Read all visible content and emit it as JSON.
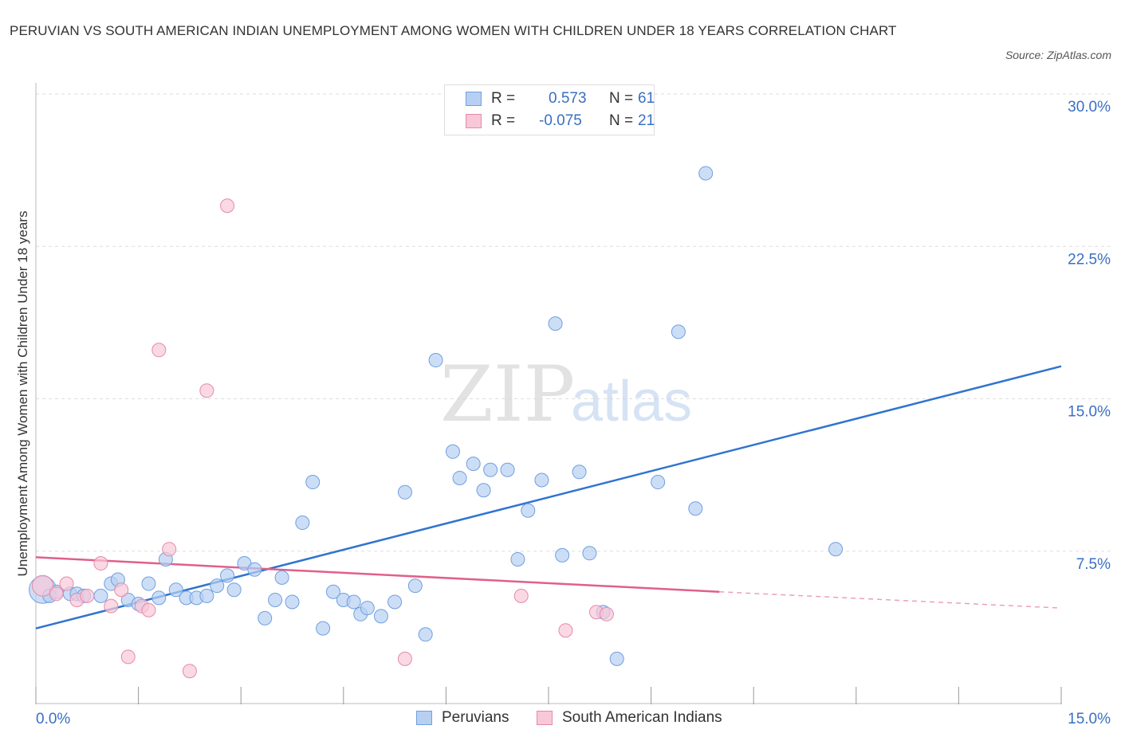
{
  "title": "PERUVIAN VS SOUTH AMERICAN INDIAN UNEMPLOYMENT AMONG WOMEN WITH CHILDREN UNDER 18 YEARS CORRELATION CHART",
  "source": "Source: ZipAtlas.com",
  "watermark": {
    "zip": "ZIP",
    "atlas": "atlas"
  },
  "colors": {
    "blue_fill": "#b7d0f2",
    "blue_stroke": "#6f9fe0",
    "blue_line": "#2f74d0",
    "pink_fill": "#f8c8d8",
    "pink_stroke": "#e68aa8",
    "pink_line": "#e0608a",
    "tick_label": "#3a6fc4",
    "grid": "#dddddd"
  },
  "legend": {
    "rows": [
      {
        "r_label": "R =",
        "r_value": "0.573",
        "n_label": "N =",
        "n_value": "61"
      },
      {
        "r_label": "R =",
        "r_value": "-0.075",
        "n_label": "N =",
        "n_value": "21"
      }
    ]
  },
  "bottom_legend": {
    "peruvians": "Peruvians",
    "south_american_indians": "South American Indians"
  },
  "chart_data": {
    "type": "scatter",
    "title": "PERUVIAN VS SOUTH AMERICAN INDIAN UNEMPLOYMENT AMONG WOMEN WITH CHILDREN UNDER 18 YEARS CORRELATION CHART",
    "xlabel": "",
    "ylabel": "Unemployment Among Women with Children Under 18 years",
    "xlim": [
      0,
      15
    ],
    "ylim": [
      0,
      30
    ],
    "x_ticks": [
      "0.0%",
      "15.0%"
    ],
    "y_ticks": [
      {
        "value": 7.5,
        "label": "7.5%"
      },
      {
        "value": 15,
        "label": "15.0%"
      },
      {
        "value": 22.5,
        "label": "22.5%"
      },
      {
        "value": 30,
        "label": "30.0%"
      }
    ],
    "grid": true,
    "series": [
      {
        "name": "Peruvians",
        "r": 0.573,
        "n": 61,
        "trend": {
          "x": [
            0,
            15
          ],
          "y": [
            3.7,
            16.6
          ]
        },
        "points": [
          [
            0.1,
            5.6
          ],
          [
            0.2,
            5.3
          ],
          [
            0.3,
            5.5
          ],
          [
            0.5,
            5.4
          ],
          [
            0.6,
            5.4
          ],
          [
            0.7,
            5.3
          ],
          [
            0.95,
            5.3
          ],
          [
            1.1,
            5.9
          ],
          [
            1.2,
            6.1
          ],
          [
            1.35,
            5.1
          ],
          [
            1.5,
            4.9
          ],
          [
            1.65,
            5.9
          ],
          [
            1.8,
            5.2
          ],
          [
            1.9,
            7.1
          ],
          [
            2.05,
            5.6
          ],
          [
            2.2,
            5.2
          ],
          [
            2.35,
            5.2
          ],
          [
            2.5,
            5.3
          ],
          [
            2.65,
            5.8
          ],
          [
            2.8,
            6.3
          ],
          [
            2.9,
            5.6
          ],
          [
            3.05,
            6.9
          ],
          [
            3.2,
            6.6
          ],
          [
            3.35,
            4.2
          ],
          [
            3.5,
            5.1
          ],
          [
            3.6,
            6.2
          ],
          [
            3.75,
            5.0
          ],
          [
            3.9,
            8.9
          ],
          [
            4.05,
            10.9
          ],
          [
            4.2,
            3.7
          ],
          [
            4.35,
            5.5
          ],
          [
            4.5,
            5.1
          ],
          [
            4.65,
            5.0
          ],
          [
            4.75,
            4.4
          ],
          [
            4.85,
            4.7
          ],
          [
            5.05,
            4.3
          ],
          [
            5.25,
            5.0
          ],
          [
            5.4,
            10.4
          ],
          [
            5.55,
            5.8
          ],
          [
            5.7,
            3.4
          ],
          [
            5.85,
            16.9
          ],
          [
            6.1,
            12.4
          ],
          [
            6.2,
            11.1
          ],
          [
            6.4,
            11.8
          ],
          [
            6.55,
            10.5
          ],
          [
            6.65,
            11.5
          ],
          [
            6.9,
            11.5
          ],
          [
            7.05,
            7.1
          ],
          [
            7.2,
            9.5
          ],
          [
            7.4,
            11.0
          ],
          [
            7.6,
            18.7
          ],
          [
            7.7,
            7.3
          ],
          [
            7.95,
            11.4
          ],
          [
            8.1,
            7.4
          ],
          [
            8.3,
            4.5
          ],
          [
            8.5,
            2.2
          ],
          [
            9.1,
            10.9
          ],
          [
            9.4,
            18.3
          ],
          [
            9.65,
            9.6
          ],
          [
            9.8,
            26.1
          ],
          [
            11.7,
            7.6
          ]
        ]
      },
      {
        "name": "South American Indians",
        "r": -0.075,
        "n": 21,
        "trend": {
          "x": [
            0,
            10.0
          ],
          "y": [
            7.2,
            5.5
          ]
        },
        "trend_dashed": {
          "x": [
            10.0,
            15
          ],
          "y": [
            5.5,
            4.7
          ]
        },
        "points": [
          [
            0.1,
            5.8
          ],
          [
            0.3,
            5.4
          ],
          [
            0.45,
            5.9
          ],
          [
            0.6,
            5.1
          ],
          [
            0.75,
            5.3
          ],
          [
            0.95,
            6.9
          ],
          [
            1.1,
            4.8
          ],
          [
            1.25,
            5.6
          ],
          [
            1.35,
            2.3
          ],
          [
            1.55,
            4.8
          ],
          [
            1.65,
            4.6
          ],
          [
            1.8,
            17.4
          ],
          [
            1.95,
            7.6
          ],
          [
            2.25,
            1.6
          ],
          [
            2.5,
            15.4
          ],
          [
            2.8,
            24.5
          ],
          [
            5.4,
            2.2
          ],
          [
            7.1,
            5.3
          ],
          [
            7.75,
            3.6
          ],
          [
            8.2,
            4.5
          ],
          [
            8.35,
            4.4
          ]
        ]
      }
    ]
  }
}
